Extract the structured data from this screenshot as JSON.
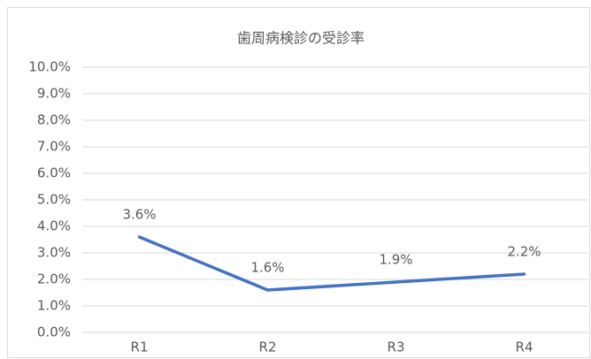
{
  "chart_data": {
    "type": "line",
    "title": "歯周病検診の受診率",
    "categories": [
      "R1",
      "R2",
      "R3",
      "R4"
    ],
    "values": [
      3.6,
      1.6,
      1.9,
      2.2
    ],
    "value_labels": [
      "3.6%",
      "1.6%",
      "1.9%",
      "2.2%"
    ],
    "color": "#4472c4",
    "ylim": [
      0,
      10
    ],
    "yticks": [
      {
        "value": 0,
        "label": "0.0%"
      },
      {
        "value": 1,
        "label": "1.0%"
      },
      {
        "value": 2,
        "label": "2.0%"
      },
      {
        "value": 3,
        "label": "3.0%"
      },
      {
        "value": 4,
        "label": "4.0%"
      },
      {
        "value": 5,
        "label": "5.0%"
      },
      {
        "value": 6,
        "label": "6.0%"
      },
      {
        "value": 7,
        "label": "7.0%"
      },
      {
        "value": 8,
        "label": "8.0%"
      },
      {
        "value": 9,
        "label": "9.0%"
      },
      {
        "value": 10,
        "label": "10.0%"
      }
    ],
    "grid": true
  }
}
